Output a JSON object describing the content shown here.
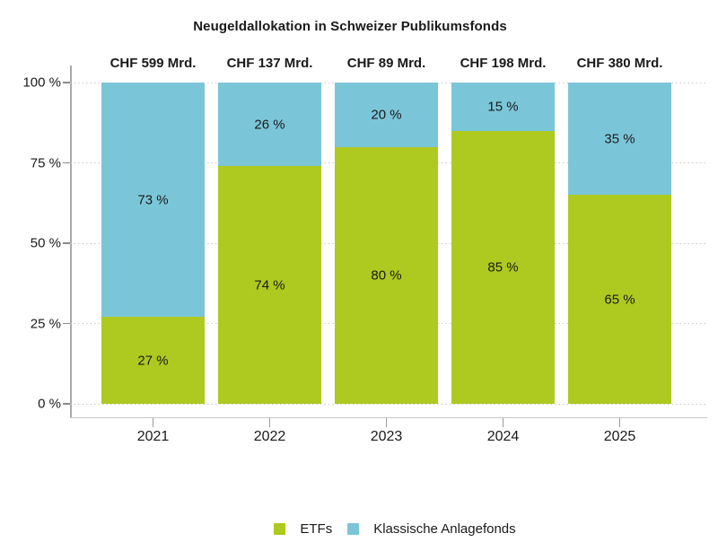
{
  "title": "Neugeldallokation in Schweizer Publikumsfonds",
  "chart_data": {
    "type": "bar",
    "stacked": true,
    "unit": "%",
    "title": "Neugeldallokation in Schweizer Publikumsfonds",
    "categories": [
      "2021",
      "2022",
      "2023",
      "2024",
      "2025"
    ],
    "column_headers": [
      "CHF 599 Mrd.",
      "CHF 137 Mrd.",
      "CHF 89 Mrd.",
      "CHF 198 Mrd.",
      "CHF 380 Mrd."
    ],
    "series": [
      {
        "name": "ETFs",
        "color": "#AEC91F",
        "position": "bottom",
        "values": [
          27,
          74,
          80,
          85,
          65
        ],
        "labels": [
          "27 %",
          "74 %",
          "80 %",
          "85 %",
          "65 %"
        ]
      },
      {
        "name": "Klassische Anlagefonds",
        "color": "#7BC5D9",
        "position": "top",
        "values": [
          73,
          26,
          20,
          15,
          35
        ],
        "labels": [
          "73 %",
          "26 %",
          "20 %",
          "15 %",
          "35 %"
        ]
      }
    ],
    "xlabel": "",
    "ylabel": "",
    "ylim": [
      0,
      100
    ],
    "yticks": [
      {
        "value": 0,
        "label": "0 %"
      },
      {
        "value": 25,
        "label": "25 %"
      },
      {
        "value": 50,
        "label": "50 %"
      },
      {
        "value": 75,
        "label": "75 %"
      },
      {
        "value": 100,
        "label": "100 %"
      }
    ],
    "grid": "horizontal-dotted",
    "legend_position": "bottom-center"
  },
  "colors": {
    "etf_green": "#AEC91F",
    "classic_blue": "#7BC5D9",
    "text": "#1a1a1a",
    "axis_line": "#a9a9a9",
    "gridline": "#c9c9c9",
    "background": "#ffffff"
  }
}
